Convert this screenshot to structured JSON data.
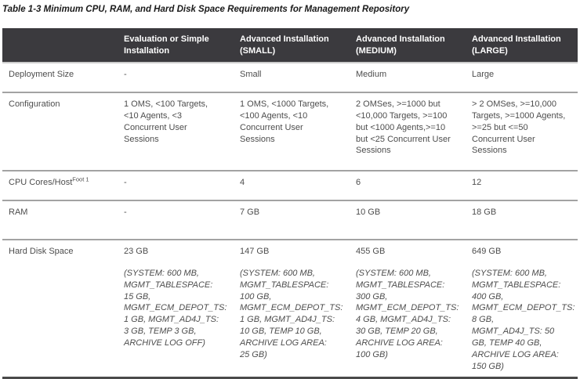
{
  "title": "Table 1-3 Minimum CPU, RAM, and Hard Disk Space Requirements for Management Repository",
  "colors": {
    "header_bg": "#3b3a3e",
    "header_text": "#ffffff",
    "body_text": "#4d4d4d",
    "row_divider": "#a3a3a3",
    "header_divider": "#cccccc",
    "table_bottom_border": "#4a4a4a",
    "title_text": "#1a1a1a",
    "background": "#ffffff"
  },
  "table": {
    "columns": [
      "",
      "Evaluation or Simple Installation",
      "Advanced Installation (SMALL)",
      "Advanced Installation (MEDIUM)",
      "Advanced Installation (LARGE)"
    ],
    "rows": [
      {
        "label": "Deployment Size",
        "cells": [
          "-",
          "Small",
          "Medium",
          "Large"
        ]
      },
      {
        "label": "Configuration",
        "cells": [
          "1 OMS, <100 Targets, <10 Agents, <3 Concurrent User Sessions",
          "1 OMS, <1000 Targets, <100 Agents, <10 Concurrent User Sessions",
          "2 OMSes, >=1000 but <10,000 Targets, >=100 but <1000 Agents,>=10 but <25 Concurrent User Sessions",
          "> 2 OMSes, >=10,000 Targets, >=1000 Agents, >=25 but <=50 Concurrent User Sessions"
        ]
      },
      {
        "label": "CPU Cores/Host",
        "label_superscript": "Foot 1",
        "cells": [
          "-",
          "4",
          "6",
          "12"
        ]
      },
      {
        "label": "RAM",
        "cells": [
          "-",
          "7 GB",
          "10 GB",
          "18 GB"
        ]
      },
      {
        "label": "Hard Disk Space",
        "cells": [
          {
            "value": "23 GB",
            "detail": "(SYSTEM: 600 MB, MGMT_TABLESPACE: 15 GB, MGMT_ECM_DEPOT_TS: 1 GB, MGMT_AD4J_TS: 3 GB, TEMP 3 GB, ARCHIVE LOG OFF)"
          },
          {
            "value": "147 GB",
            "detail": "(SYSTEM: 600 MB, MGMT_TABLESPACE: 100 GB, MGMT_ECM_DEPOT_TS: 1 GB, MGMT_AD4J_TS: 10 GB, TEMP 10 GB, ARCHIVE LOG AREA: 25 GB)"
          },
          {
            "value": "455 GB",
            "detail": "(SYSTEM: 600 MB, MGMT_TABLESPACE: 300 GB, MGMT_ECM_DEPOT_TS: 4 GB, MGMT_AD4J_TS: 30 GB, TEMP 20 GB, ARCHIVE LOG AREA: 100 GB)"
          },
          {
            "value": "649 GB",
            "detail": "(SYSTEM: 600 MB, MGMT_TABLESPACE: 400 GB, MGMT_ECM_DEPOT_TS: 8 GB, MGMT_AD4J_TS: 50 GB, TEMP 40 GB, ARCHIVE LOG AREA: 150 GB)"
          }
        ]
      }
    ]
  }
}
